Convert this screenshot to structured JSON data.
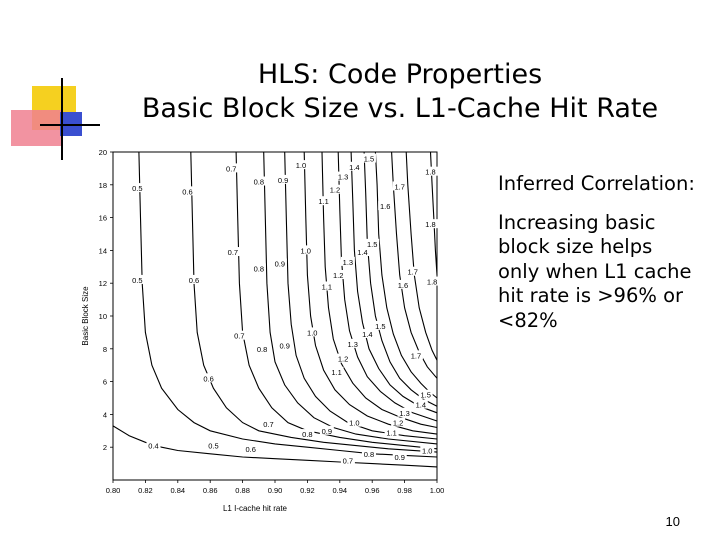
{
  "title": {
    "line1": "HLS: Code Properties",
    "line2": "Basic Block Size vs. L1-Cache Hit Rate"
  },
  "side_text": {
    "heading": "Inferred Correlation:",
    "body": "Increasing basic block size helps only when L1 cache hit rate is >96% or <82%"
  },
  "page_number": "10",
  "colors": {
    "deco_yellow": "#f5d020",
    "deco_red": "#f08090",
    "deco_blue": "#3a4fd0",
    "ink": "#000000"
  },
  "chart_data": {
    "type": "contour",
    "xlabel": "L1 I-cache hit rate",
    "ylabel": "Basic Block Size",
    "x_ticks": [
      "0.80",
      "0.82",
      "0.84",
      "0.86",
      "0.88",
      "0.90",
      "0.92",
      "0.94",
      "0.96",
      "0.98",
      "1.00"
    ],
    "y_ticks": [
      "2",
      "4",
      "6",
      "8",
      "10",
      "12",
      "14",
      "16",
      "18",
      "20"
    ],
    "xlim": [
      0.8,
      1.0
    ],
    "ylim": [
      0,
      20
    ],
    "grid": false,
    "contour_levels": [
      {
        "level": 0.4,
        "label": "0.4",
        "points": [
          [
            0.8,
            3.3
          ],
          [
            0.81,
            2.7
          ],
          [
            0.82,
            2.3
          ],
          [
            0.83,
            2.0
          ],
          [
            0.84,
            1.8
          ],
          [
            0.86,
            1.6
          ],
          [
            0.88,
            1.4
          ],
          [
            0.9,
            1.3
          ],
          [
            0.92,
            1.2
          ],
          [
            0.94,
            1.1
          ],
          [
            0.96,
            1.0
          ],
          [
            0.98,
            0.9
          ],
          [
            1.0,
            0.8
          ]
        ],
        "labels_at": [
          [
            0.825,
            2.1
          ]
        ]
      },
      {
        "level": 0.5,
        "label": "0.5",
        "points": [
          [
            0.816,
            20
          ],
          [
            0.817,
            16
          ],
          [
            0.818,
            12
          ],
          [
            0.82,
            9
          ],
          [
            0.824,
            7
          ],
          [
            0.83,
            5.6
          ],
          [
            0.84,
            4.3
          ],
          [
            0.85,
            3.5
          ],
          [
            0.86,
            3.0
          ],
          [
            0.88,
            2.5
          ],
          [
            0.9,
            2.2
          ],
          [
            0.92,
            2.0
          ],
          [
            0.94,
            1.8
          ],
          [
            0.96,
            1.6
          ],
          [
            0.98,
            1.5
          ],
          [
            1.0,
            1.4
          ]
        ],
        "labels_at": [
          [
            0.815,
            17.8
          ],
          [
            0.815,
            12.2
          ],
          [
            0.862,
            2.1
          ]
        ]
      },
      {
        "level": 0.6,
        "label": "0.6",
        "points": [
          [
            0.848,
            20
          ],
          [
            0.849,
            16
          ],
          [
            0.85,
            12
          ],
          [
            0.852,
            9
          ],
          [
            0.856,
            7
          ],
          [
            0.862,
            5.6
          ],
          [
            0.87,
            4.4
          ],
          [
            0.88,
            3.5
          ],
          [
            0.89,
            3.0
          ],
          [
            0.91,
            2.6
          ],
          [
            0.93,
            2.3
          ],
          [
            0.95,
            2.1
          ],
          [
            0.97,
            1.9
          ],
          [
            1.0,
            1.7
          ]
        ],
        "labels_at": [
          [
            0.846,
            17.6
          ],
          [
            0.85,
            12.2
          ],
          [
            0.859,
            6.2
          ],
          [
            0.885,
            1.9
          ]
        ]
      },
      {
        "level": 0.7,
        "label": "0.7",
        "points": [
          [
            0.876,
            20
          ],
          [
            0.877,
            16
          ],
          [
            0.878,
            12
          ],
          [
            0.88,
            9
          ],
          [
            0.884,
            7
          ],
          [
            0.89,
            5.6
          ],
          [
            0.898,
            4.4
          ],
          [
            0.908,
            3.5
          ],
          [
            0.92,
            3.0
          ],
          [
            0.94,
            2.6
          ],
          [
            0.96,
            2.3
          ],
          [
            0.98,
            2.1
          ],
          [
            1.0,
            1.9
          ]
        ],
        "labels_at": [
          [
            0.873,
            19.0
          ],
          [
            0.874,
            13.9
          ],
          [
            0.878,
            8.8
          ],
          [
            0.896,
            3.4
          ],
          [
            0.945,
            1.2
          ]
        ]
      },
      {
        "level": 0.8,
        "label": "0.8",
        "points": [
          [
            0.893,
            20
          ],
          [
            0.894,
            16
          ],
          [
            0.895,
            12
          ],
          [
            0.897,
            9
          ],
          [
            0.9,
            7.2
          ],
          [
            0.906,
            5.8
          ],
          [
            0.914,
            4.7
          ],
          [
            0.924,
            3.8
          ],
          [
            0.936,
            3.2
          ],
          [
            0.95,
            2.8
          ],
          [
            0.97,
            2.5
          ],
          [
            1.0,
            2.2
          ]
        ],
        "labels_at": [
          [
            0.89,
            18.2
          ],
          [
            0.89,
            12.9
          ],
          [
            0.892,
            8.0
          ],
          [
            0.92,
            2.8
          ],
          [
            0.958,
            1.6
          ]
        ]
      },
      {
        "level": 0.9,
        "label": "0.9",
        "points": [
          [
            0.906,
            20
          ],
          [
            0.907,
            16
          ],
          [
            0.908,
            12
          ],
          [
            0.91,
            9.5
          ],
          [
            0.913,
            7.6
          ],
          [
            0.918,
            6.2
          ],
          [
            0.925,
            5.1
          ],
          [
            0.934,
            4.2
          ],
          [
            0.945,
            3.5
          ],
          [
            0.96,
            3.0
          ],
          [
            0.98,
            2.7
          ],
          [
            1.0,
            2.5
          ]
        ],
        "labels_at": [
          [
            0.905,
            18.3
          ],
          [
            0.903,
            13.2
          ],
          [
            0.906,
            8.2
          ],
          [
            0.932,
            3.0
          ],
          [
            0.977,
            1.4
          ]
        ]
      },
      {
        "level": 1.0,
        "label": "1.0",
        "points": [
          [
            0.918,
            20
          ],
          [
            0.919,
            16
          ],
          [
            0.92,
            12.5
          ],
          [
            0.922,
            10
          ],
          [
            0.925,
            8.2
          ],
          [
            0.93,
            6.7
          ],
          [
            0.937,
            5.5
          ],
          [
            0.946,
            4.6
          ],
          [
            0.957,
            3.9
          ],
          [
            0.97,
            3.4
          ],
          [
            0.985,
            3.0
          ],
          [
            1.0,
            2.8
          ]
        ],
        "labels_at": [
          [
            0.916,
            19.2
          ],
          [
            0.919,
            14.0
          ],
          [
            0.923,
            9.0
          ],
          [
            0.949,
            3.5
          ],
          [
            0.994,
            1.8
          ]
        ]
      },
      {
        "level": 1.1,
        "label": "1.1",
        "points": [
          [
            0.929,
            20
          ],
          [
            0.93,
            16
          ],
          [
            0.931,
            13
          ],
          [
            0.933,
            10.5
          ],
          [
            0.936,
            8.6
          ],
          [
            0.941,
            7.1
          ],
          [
            0.948,
            5.9
          ],
          [
            0.956,
            5.0
          ],
          [
            0.966,
            4.3
          ],
          [
            0.978,
            3.8
          ],
          [
            0.99,
            3.4
          ],
          [
            1.0,
            3.2
          ]
        ],
        "labels_at": [
          [
            0.93,
            17.0
          ],
          [
            0.932,
            11.8
          ],
          [
            0.938,
            6.6
          ],
          [
            0.972,
            2.9
          ]
        ]
      },
      {
        "level": 1.2,
        "label": "1.2",
        "points": [
          [
            0.939,
            20
          ],
          [
            0.94,
            16.5
          ],
          [
            0.941,
            13.5
          ],
          [
            0.943,
            11
          ],
          [
            0.946,
            9.1
          ],
          [
            0.951,
            7.5
          ],
          [
            0.957,
            6.3
          ],
          [
            0.965,
            5.4
          ],
          [
            0.974,
            4.7
          ],
          [
            0.985,
            4.1
          ],
          [
            1.0,
            3.6
          ]
        ],
        "labels_at": [
          [
            0.937,
            17.7
          ],
          [
            0.939,
            12.5
          ],
          [
            0.942,
            7.4
          ],
          [
            0.976,
            3.5
          ]
        ]
      },
      {
        "level": 1.3,
        "label": "1.3",
        "points": [
          [
            0.947,
            20
          ],
          [
            0.948,
            17
          ],
          [
            0.949,
            14
          ],
          [
            0.951,
            11.5
          ],
          [
            0.954,
            9.6
          ],
          [
            0.958,
            8.0
          ],
          [
            0.964,
            6.8
          ],
          [
            0.971,
            5.8
          ],
          [
            0.979,
            5.1
          ],
          [
            0.989,
            4.5
          ],
          [
            1.0,
            4.1
          ]
        ],
        "labels_at": [
          [
            0.942,
            18.5
          ],
          [
            0.945,
            13.3
          ],
          [
            0.948,
            8.3
          ],
          [
            0.98,
            4.1
          ]
        ]
      },
      {
        "level": 1.4,
        "label": "1.4",
        "points": [
          [
            0.955,
            20
          ],
          [
            0.956,
            17.5
          ],
          [
            0.957,
            14.5
          ],
          [
            0.959,
            12
          ],
          [
            0.962,
            10
          ],
          [
            0.966,
            8.5
          ],
          [
            0.971,
            7.2
          ],
          [
            0.977,
            6.2
          ],
          [
            0.984,
            5.5
          ],
          [
            0.992,
            4.9
          ],
          [
            1.0,
            4.5
          ]
        ],
        "labels_at": [
          [
            0.949,
            19.1
          ],
          [
            0.954,
            13.9
          ],
          [
            0.957,
            8.9
          ],
          [
            0.99,
            4.6
          ]
        ]
      },
      {
        "level": 1.5,
        "label": "1.5",
        "points": [
          [
            0.962,
            20
          ],
          [
            0.963,
            18
          ],
          [
            0.964,
            15
          ],
          [
            0.966,
            12.5
          ],
          [
            0.969,
            10.5
          ],
          [
            0.973,
            8.9
          ],
          [
            0.978,
            7.6
          ],
          [
            0.984,
            6.6
          ],
          [
            0.99,
            5.9
          ],
          [
            0.995,
            5.4
          ],
          [
            1.0,
            5.0
          ]
        ],
        "labels_at": [
          [
            0.958,
            19.6
          ],
          [
            0.96,
            14.4
          ],
          [
            0.965,
            9.4
          ],
          [
            0.993,
            5.2
          ]
        ]
      },
      {
        "level": 1.6,
        "label": "1.6",
        "points": [
          [
            0.972,
            20
          ],
          [
            0.973,
            18
          ],
          [
            0.975,
            15
          ],
          [
            0.977,
            12.5
          ],
          [
            0.98,
            10.5
          ],
          [
            0.984,
            9.0
          ],
          [
            0.989,
            7.8
          ],
          [
            0.994,
            6.9
          ],
          [
            1.0,
            6.2
          ]
        ],
        "labels_at": [
          [
            0.968,
            16.7
          ],
          [
            0.979,
            11.9
          ]
        ]
      },
      {
        "level": 1.7,
        "label": "1.7",
        "points": [
          [
            0.981,
            20
          ],
          [
            0.982,
            18
          ],
          [
            0.984,
            15
          ],
          [
            0.986,
            12.5
          ],
          [
            0.989,
            10.5
          ],
          [
            0.993,
            9.0
          ],
          [
            0.997,
            7.9
          ],
          [
            1.0,
            7.3
          ]
        ],
        "labels_at": [
          [
            0.977,
            17.9
          ],
          [
            0.985,
            12.7
          ],
          [
            0.987,
            7.6
          ]
        ]
      },
      {
        "level": 1.8,
        "label": "1.8",
        "points": [
          [
            0.996,
            20
          ],
          [
            0.997,
            18
          ],
          [
            0.998,
            16
          ],
          [
            0.999,
            14
          ],
          [
            1.0,
            12.5
          ]
        ],
        "labels_at": [
          [
            0.996,
            18.8
          ],
          [
            0.996,
            15.6
          ],
          [
            0.997,
            12.1
          ]
        ]
      }
    ]
  }
}
